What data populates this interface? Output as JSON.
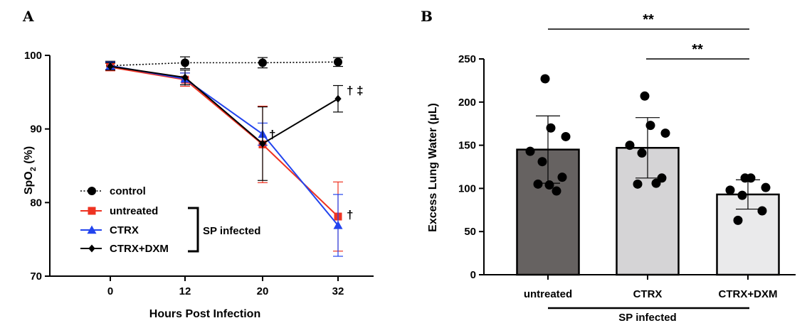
{
  "figure": {
    "panel_a_letter": "A",
    "panel_b_letter": "B"
  },
  "chart_data": [
    {
      "type": "line",
      "panel": "A",
      "xlabel": "Hours Post Infection",
      "ylabel_main": "SpO",
      "ylabel_sub": "2",
      "ylabel_suffix": " (%)",
      "x": [
        0,
        12,
        20,
        32
      ],
      "x_ticks": [
        "0",
        "12",
        "20",
        "32"
      ],
      "y_ticks": [
        "70",
        "80",
        "90",
        "100"
      ],
      "ylim": [
        70,
        100
      ],
      "series": [
        {
          "name": "control",
          "color": "#000000",
          "marker": "circle",
          "dash": "dotted",
          "values": [
            98.6,
            99.0,
            99.0,
            99.1
          ],
          "errors": [
            0.6,
            0.8,
            0.7,
            0.6
          ]
        },
        {
          "name": "untreated",
          "color": "#ee3322",
          "marker": "square",
          "dash": "solid",
          "values": [
            98.4,
            96.7,
            87.9,
            78.1
          ],
          "errors": [
            0.5,
            0.9,
            5.2,
            4.7
          ]
        },
        {
          "name": "CTRX",
          "color": "#2244ee",
          "marker": "triangle",
          "dash": "solid",
          "values": [
            98.6,
            96.8,
            89.3,
            76.9
          ],
          "errors": [
            0.5,
            0.8,
            1.5,
            4.2
          ]
        },
        {
          "name": "CTRX+DXM",
          "color": "#000000",
          "marker": "diamond",
          "dash": "solid",
          "values": [
            98.5,
            97.0,
            88.0,
            94.1
          ],
          "errors": [
            0.5,
            1.0,
            5.0,
            1.8
          ]
        }
      ],
      "annotations": {
        "h20": "†",
        "h32_dxm": "† ‡",
        "h32_untreated": "†"
      },
      "bracket_label": "SP infected",
      "legend_position": "bottom-left"
    },
    {
      "type": "bar",
      "panel": "B",
      "ylabel": "Excess Lung Water (μL)",
      "categories": [
        "untreated",
        "CTRX",
        "CTRX+DXM"
      ],
      "values": [
        145,
        147,
        93
      ],
      "errors": [
        39,
        35,
        17
      ],
      "bar_colors": [
        "#666261",
        "#d5d4d6",
        "#eaeaeb"
      ],
      "points": [
        [
          227,
          170,
          160,
          143,
          131,
          113,
          105,
          97,
          104
        ],
        [
          207,
          173,
          164,
          150,
          141,
          112,
          105,
          106
        ],
        [
          112,
          112,
          101,
          98,
          92,
          74,
          63
        ]
      ],
      "y_ticks": [
        "0",
        "50",
        "100",
        "150",
        "200",
        "250"
      ],
      "ylim": [
        0,
        250
      ],
      "significance": [
        "**",
        "**"
      ],
      "group_label": "SP infected"
    }
  ]
}
